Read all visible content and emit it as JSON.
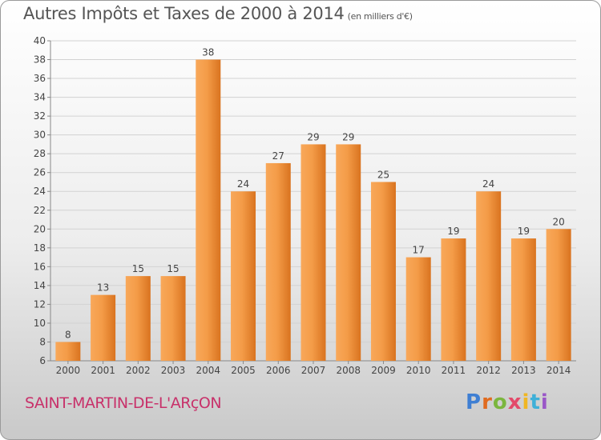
{
  "header": {
    "title": "Autres Impôts et Taxes de 2000 à 2014",
    "subtitle": "(en milliers d'€)"
  },
  "footer": {
    "commune": "SAINT-MARTIN-DE-L'ARçON",
    "logo_letters": [
      "P",
      "r",
      "o",
      "x",
      "i",
      "t",
      "i"
    ]
  },
  "colors": {
    "bar_light": "#f8a85a",
    "bar_dark": "#d9731f",
    "commune_text": "#c8316a"
  },
  "chart_data": {
    "type": "bar",
    "title": "Autres Impôts et Taxes de 2000 à 2014",
    "subtitle": "(en milliers d'€)",
    "categories": [
      "2000",
      "2001",
      "2002",
      "2003",
      "2004",
      "2005",
      "2006",
      "2007",
      "2008",
      "2009",
      "2010",
      "2011",
      "2012",
      "2013",
      "2014"
    ],
    "values": [
      8,
      13,
      15,
      15,
      38,
      24,
      27,
      29,
      29,
      25,
      17,
      19,
      24,
      19,
      20
    ],
    "data_labels": [
      "8",
      "13",
      "15",
      "15",
      "38",
      "24",
      "27",
      "29",
      "29",
      "25",
      "17",
      "19",
      "24",
      "19",
      "20"
    ],
    "yticks": [
      "6",
      "8",
      "10",
      "12",
      "14",
      "16",
      "18",
      "20",
      "22",
      "24",
      "26",
      "28",
      "30",
      "32",
      "34",
      "36",
      "38",
      "40"
    ],
    "ylim": [
      6,
      40
    ],
    "grid": true,
    "xlabel": "",
    "ylabel": ""
  }
}
